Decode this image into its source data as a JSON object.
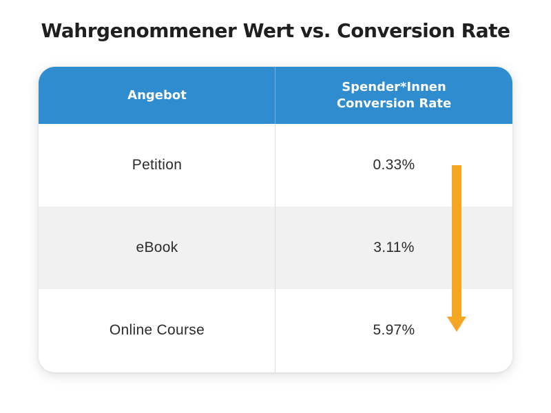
{
  "title": "Wahrgenommener Wert vs. Conversion Rate",
  "colors": {
    "header": "#2f8ccf",
    "arrow": "#f5a623",
    "row_alt": "#f1f1f1"
  },
  "chart_data": {
    "type": "table",
    "title": "Wahrgenommener Wert vs. Conversion Rate",
    "columns": [
      "Angebot",
      "Spender*Innen Conversion Rate"
    ],
    "column_header_lines": [
      [
        "Angebot"
      ],
      [
        "Spender*Innen",
        "Conversion Rate"
      ]
    ],
    "rows": [
      {
        "offer": "Petition",
        "rate": "0.33%"
      },
      {
        "offer": "eBook",
        "rate": "3.11%"
      },
      {
        "offer": "Online Course",
        "rate": "5.97%"
      }
    ],
    "annotation": "down-arrow"
  }
}
